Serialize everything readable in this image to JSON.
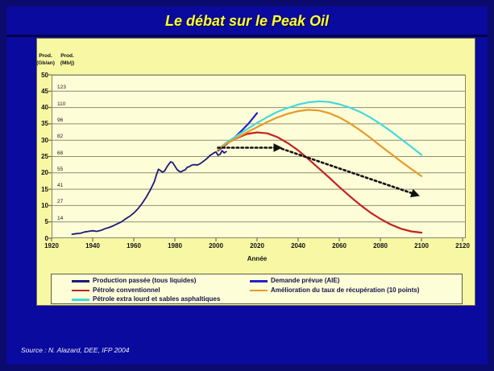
{
  "title": "Le débat sur le Peak Oil",
  "source": "Source : N. Alazard, DEE, IFP 2004",
  "colors": {
    "slide_background": "#0a0a9e",
    "slide_frame": "#0b0b6e",
    "panel_background": "#f8f8a4",
    "plot_background": "#fdfdd8",
    "title_text": "#ffff33",
    "gridline": "#8f8f72",
    "annotation_arrow": "#111111"
  },
  "axis_header": {
    "left_line1": "Prod.",
    "left_line2": "(Gb/an)",
    "right_line1": "Prod.",
    "right_line2": "(Mb/j)"
  },
  "chart_data": {
    "type": "line",
    "title": "Le débat sur le Peak Oil",
    "xlabel": "Année",
    "ylabel_left": "Prod. (Gb/an)",
    "ylabel_right": "Prod. (Mb/j)",
    "xlim": [
      1920,
      2120
    ],
    "ylim": [
      0,
      50
    ],
    "grid": true,
    "legend_position": "bottom",
    "x_ticks": [
      1920,
      1940,
      1960,
      1980,
      2000,
      2020,
      2040,
      2060,
      2080,
      2100,
      2120
    ],
    "y_ticks_left": [
      0,
      5,
      10,
      15,
      20,
      25,
      30,
      35,
      40,
      45,
      50
    ],
    "y_ticks_right": [
      14,
      27,
      41,
      55,
      68,
      82,
      96,
      110,
      123
    ],
    "series": [
      {
        "name": "Production passée (tous liquides)",
        "color": "#1b1b78",
        "width": 1.8,
        "style": "solid",
        "points": [
          [
            1930,
            1.2
          ],
          [
            1932,
            1.4
          ],
          [
            1934,
            1.5
          ],
          [
            1936,
            1.9
          ],
          [
            1938,
            2.1
          ],
          [
            1940,
            2.3
          ],
          [
            1942,
            2.1
          ],
          [
            1944,
            2.4
          ],
          [
            1946,
            2.9
          ],
          [
            1948,
            3.3
          ],
          [
            1950,
            3.8
          ],
          [
            1952,
            4.4
          ],
          [
            1954,
            5.0
          ],
          [
            1956,
            5.9
          ],
          [
            1958,
            6.7
          ],
          [
            1960,
            7.7
          ],
          [
            1962,
            9.0
          ],
          [
            1964,
            10.6
          ],
          [
            1966,
            12.5
          ],
          [
            1968,
            14.7
          ],
          [
            1970,
            17.3
          ],
          [
            1971,
            19.3
          ],
          [
            1972,
            21.1
          ],
          [
            1973,
            20.7
          ],
          [
            1974,
            20.2
          ],
          [
            1975,
            20.6
          ],
          [
            1976,
            21.7
          ],
          [
            1977,
            22.6
          ],
          [
            1978,
            23.4
          ],
          [
            1979,
            23.1
          ],
          [
            1980,
            22.1
          ],
          [
            1981,
            21.1
          ],
          [
            1982,
            20.5
          ],
          [
            1983,
            20.3
          ],
          [
            1984,
            20.7
          ],
          [
            1985,
            20.9
          ],
          [
            1986,
            21.7
          ],
          [
            1987,
            21.9
          ],
          [
            1988,
            22.3
          ],
          [
            1989,
            22.5
          ],
          [
            1990,
            22.5
          ],
          [
            1991,
            22.4
          ],
          [
            1992,
            22.7
          ],
          [
            1993,
            23.1
          ],
          [
            1994,
            23.6
          ],
          [
            1995,
            24.1
          ],
          [
            1996,
            24.6
          ],
          [
            1997,
            25.3
          ],
          [
            1998,
            25.7
          ],
          [
            1999,
            26.1
          ],
          [
            2000,
            26.4
          ],
          [
            2001,
            25.4
          ],
          [
            2002,
            25.7
          ],
          [
            2003,
            26.8
          ],
          [
            2004,
            26.1
          ],
          [
            2005,
            26.5
          ]
        ]
      },
      {
        "name": "Demande prévue (AIE)",
        "color": "#2323c8",
        "width": 2.2,
        "style": "solid",
        "points": [
          [
            2001,
            26.8
          ],
          [
            2004,
            28.2
          ],
          [
            2008,
            30.2
          ],
          [
            2012,
            32.6
          ],
          [
            2016,
            35.2
          ],
          [
            2020,
            38.3
          ]
        ]
      },
      {
        "name": "Pétrole conventionnel",
        "color": "#c42222",
        "width": 2.2,
        "style": "solid",
        "points": [
          [
            2001,
            27.0
          ],
          [
            2005,
            28.9
          ],
          [
            2010,
            30.6
          ],
          [
            2015,
            31.9
          ],
          [
            2020,
            32.4
          ],
          [
            2025,
            32.1
          ],
          [
            2030,
            30.9
          ],
          [
            2035,
            29.1
          ],
          [
            2040,
            26.9
          ],
          [
            2045,
            24.2
          ],
          [
            2050,
            21.4
          ],
          [
            2055,
            18.6
          ],
          [
            2060,
            15.7
          ],
          [
            2065,
            12.9
          ],
          [
            2070,
            10.3
          ],
          [
            2075,
            7.9
          ],
          [
            2080,
            5.9
          ],
          [
            2085,
            4.2
          ],
          [
            2090,
            2.9
          ],
          [
            2095,
            2.1
          ],
          [
            2100,
            1.7
          ]
        ]
      },
      {
        "name": "Pétrole extra lourd et sables asphaltiques",
        "color": "#45d8dc",
        "width": 2.2,
        "style": "solid",
        "points": [
          [
            2001,
            27.2
          ],
          [
            2005,
            29.2
          ],
          [
            2010,
            31.3
          ],
          [
            2015,
            33.3
          ],
          [
            2020,
            35.3
          ],
          [
            2025,
            37.1
          ],
          [
            2030,
            38.7
          ],
          [
            2035,
            39.9
          ],
          [
            2040,
            40.9
          ],
          [
            2045,
            41.6
          ],
          [
            2050,
            41.9
          ],
          [
            2055,
            41.7
          ],
          [
            2060,
            41.0
          ],
          [
            2065,
            40.0
          ],
          [
            2070,
            38.7
          ],
          [
            2075,
            37.0
          ],
          [
            2080,
            35.0
          ],
          [
            2085,
            32.8
          ],
          [
            2090,
            30.4
          ],
          [
            2095,
            28.0
          ],
          [
            2100,
            25.5
          ]
        ]
      },
      {
        "name": "Amélioration du taux de récupération  (10 points)",
        "color": "#e89a28",
        "width": 2.2,
        "style": "solid",
        "points": [
          [
            2001,
            27.1
          ],
          [
            2005,
            28.9
          ],
          [
            2010,
            30.7
          ],
          [
            2015,
            32.4
          ],
          [
            2020,
            34.0
          ],
          [
            2025,
            35.6
          ],
          [
            2030,
            37.0
          ],
          [
            2035,
            38.1
          ],
          [
            2040,
            38.9
          ],
          [
            2045,
            39.3
          ],
          [
            2050,
            39.1
          ],
          [
            2055,
            38.3
          ],
          [
            2060,
            37.0
          ],
          [
            2065,
            35.2
          ],
          [
            2070,
            33.1
          ],
          [
            2075,
            30.8
          ],
          [
            2080,
            28.3
          ],
          [
            2085,
            25.9
          ],
          [
            2090,
            23.5
          ],
          [
            2095,
            21.2
          ],
          [
            2100,
            19.0
          ]
        ]
      },
      {
        "name": "annotation-arrow-flat",
        "color": "#111111",
        "width": 2.6,
        "style": "dotted-arrow",
        "points": [
          [
            2001,
            27.7
          ],
          [
            2031,
            27.7
          ]
        ]
      },
      {
        "name": "annotation-arrow-decline",
        "color": "#111111",
        "width": 2.6,
        "style": "dotted-arrow",
        "points": [
          [
            2032,
            27.4
          ],
          [
            2098,
            13.2
          ]
        ]
      }
    ],
    "legend": {
      "left_column": [
        "Production passée (tous liquides)",
        "Pétrole conventionnel",
        "Pétrole extra lourd et sables asphaltiques"
      ],
      "right_column": [
        "Demande prévue (AIE)",
        "Amélioration du taux de récupération  (10 points)"
      ]
    }
  }
}
